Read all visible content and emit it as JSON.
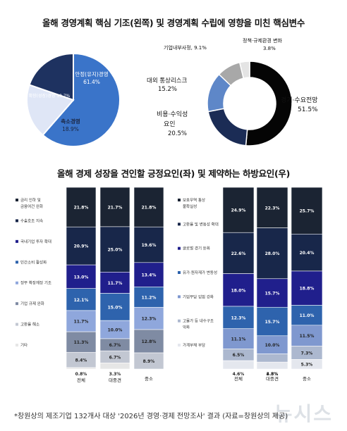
{
  "title_top": "올해 경영계획 핵심 기조(왼쪽) 및 경영계획 수립에 영향을 미친 핵심변수",
  "title_bottom": "올해 경제 성장을 견인할 긍정요인(좌) 및 제약하는 하방요인(우)",
  "footnote": "*창원상의 제조기업 132개사 대상 '2026년 경영·경제 전망조사' 결과 (자료=창원상의 제공)",
  "watermark": "뉴시스",
  "chart_data": [
    {
      "type": "pie",
      "labels": [
        "안정(유지)경영",
        "축소경영",
        "확장(성장)경영"
      ],
      "values": [
        61.4,
        18.9,
        19.7
      ],
      "colors": [
        "#3a74c9",
        "#dfe6f6",
        "#1e3260"
      ]
    },
    {
      "type": "pie",
      "subtype": "donut",
      "labels": [
        "경기·수요전망",
        "비용·수익성 요인",
        "대외 통상리스크",
        "기업내부사정",
        "정책·규제환경 변화"
      ],
      "values": [
        51.5,
        20.5,
        15.2,
        9.1,
        3.8
      ],
      "colors": [
        "#050505",
        "#1b2c55",
        "#5e87c8",
        "#a8a8a8",
        "#e4e4e4"
      ]
    },
    {
      "type": "bar",
      "stacked": true,
      "categories": [
        "전체",
        "대중견",
        "중소"
      ],
      "series": [
        {
          "name": "금리 인하 및 금융여건 완화",
          "values": [
            21.8,
            21.7,
            21.8
          ],
          "color": "#1b2433"
        },
        {
          "name": "수출호조 지속",
          "values": [
            20.9,
            25.0,
            19.6
          ],
          "color": "#18274a"
        },
        {
          "name": "국내기업 투자 확대",
          "values": [
            13.0,
            11.7,
            13.4
          ],
          "color": "#201f8c"
        },
        {
          "name": "민간소비 활성화",
          "values": [
            12.1,
            15.0,
            11.2
          ],
          "color": "#2e63ad"
        },
        {
          "name": "정부 확장재정 기조",
          "values": [
            11.7,
            10.0,
            12.3
          ],
          "color": "#8fa7dc"
        },
        {
          "name": "기업 규제 완화",
          "values": [
            11.3,
            6.7,
            12.8
          ],
          "color": "#7f8ba3"
        },
        {
          "name": "고환율 해소",
          "values": [
            8.4,
            6.7,
            8.9
          ],
          "color": "#c2c7d2"
        },
        {
          "name": "기타",
          "values": [
            0.8,
            3.3,
            0.0
          ],
          "color": "#e6e6e6"
        }
      ],
      "value_labels": [
        [
          "21.8%",
          "21.7%",
          "21.8%"
        ],
        [
          "20.9%",
          "25.0%",
          "19.6%"
        ],
        [
          "13.0%",
          "11.7%",
          "13.4%"
        ],
        [
          "12.1%",
          "15.0%",
          "11.2%"
        ],
        [
          "11.7%",
          "10.0%",
          "12.3%"
        ],
        [
          "11.3%",
          "6.7%",
          "12.8%"
        ],
        [
          "8.4%",
          "6.7%",
          "8.9%"
        ],
        [
          "0.8%",
          "3.3%",
          ""
        ]
      ]
    },
    {
      "type": "bar",
      "stacked": true,
      "categories": [
        "전체",
        "대중견",
        "중소"
      ],
      "series": [
        {
          "name": "보호무역 통상 불확실성",
          "values": [
            24.9,
            22.3,
            25.7
          ],
          "color": "#1b2433"
        },
        {
          "name": "고환율 및 변동성 확대",
          "values": [
            22.6,
            28.0,
            20.4
          ],
          "color": "#18274a"
        },
        {
          "name": "글로벌 경기 둔화",
          "values": [
            18.0,
            15.7,
            18.8
          ],
          "color": "#201f8c"
        },
        {
          "name": "유가·원자재가 변동성",
          "values": [
            12.3,
            15.7,
            11.0
          ],
          "color": "#2e63ad"
        },
        {
          "name": "기업부담 입법 강화",
          "values": [
            11.1,
            10.0,
            11.5
          ],
          "color": "#7f98cf"
        },
        {
          "name": "고물가 등 내수구조 악화",
          "values": [
            6.5,
            4.5,
            7.3
          ],
          "color": "#acb8cf"
        },
        {
          "name": "가계부채 부담",
          "values": [
            4.6,
            3.8,
            5.3
          ],
          "color": "#e4e7ee"
        }
      ],
      "value_labels": [
        [
          "24.9%",
          "22.3%",
          "25.7%"
        ],
        [
          "22.6%",
          "28.0%",
          "20.4%"
        ],
        [
          "18.0%",
          "15.7%",
          "18.8%"
        ],
        [
          "12.3%",
          "15.7%",
          "11.0%"
        ],
        [
          "11.1%",
          "10.0%",
          "11.5%"
        ],
        [
          "6.5%",
          "4.5%",
          "7.3%"
        ],
        [
          "4.6%",
          "3.8%",
          "5.3%"
        ]
      ]
    }
  ],
  "pie_labels": {
    "stable": "안정(유지)경영",
    "stable_pct": "61.4%",
    "shrink": "축소경영",
    "shrink_pct": "18.9%",
    "expand": "확장(성장)경영 19.7%"
  },
  "donut_labels": {
    "demand": "경기·수요전망",
    "demand_pct": "51.5%",
    "cost_1": "비용·수익성",
    "cost_2": "요인",
    "cost_pct": "20.5%",
    "trade": "대외 통상리스크",
    "trade_pct": "15.2%",
    "internal": "기업내부사정, 9.1%",
    "policy": "정책·규제환경 변화",
    "policy_pct": "3.8%"
  },
  "left_legend": [
    [
      "금리 인하 및",
      "금융여건 완화"
    ],
    [
      "수출호조 지속"
    ],
    [
      "국내기업 투자 확대"
    ],
    [
      "민간소비 활성화"
    ],
    [
      "정부 확장재정 기조"
    ],
    [
      "기업 규제 완화"
    ],
    [
      "고환율 해소"
    ],
    [
      "기타"
    ]
  ],
  "right_legend": [
    [
      "보호무역 통상",
      "불확실성"
    ],
    [
      "고환율 및 변동성 확대"
    ],
    [
      "글로벌 경기 둔화"
    ],
    [
      "유가·원자재가 변동성"
    ],
    [
      "기업부담 입법 강화"
    ],
    [
      "고물가 등 내수구조",
      "악화"
    ],
    [
      "가계부채 부담"
    ]
  ]
}
